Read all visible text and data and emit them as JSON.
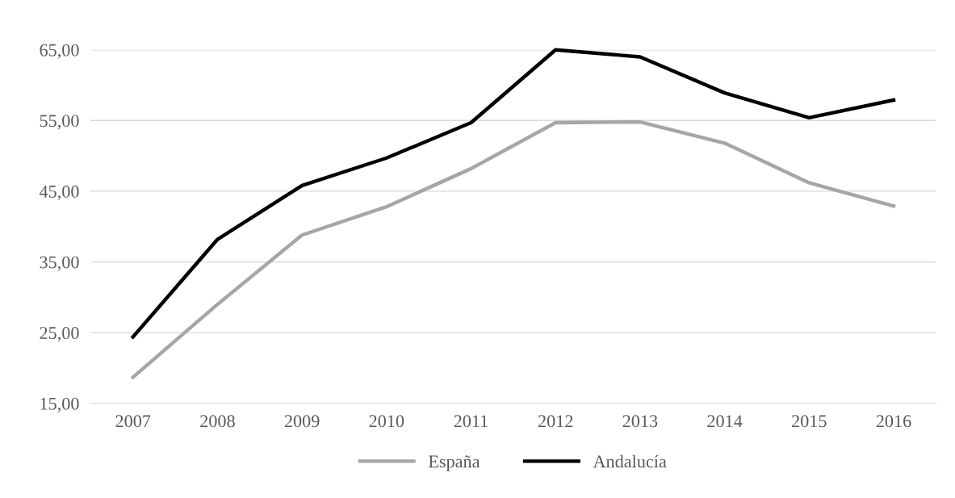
{
  "chart_data": {
    "type": "line",
    "categories": [
      "2007",
      "2008",
      "2009",
      "2010",
      "2011",
      "2012",
      "2013",
      "2014",
      "2015",
      "2016"
    ],
    "series": [
      {
        "name": "España",
        "color": "#a6a6a6",
        "values": [
          18.7,
          29.0,
          38.8,
          42.8,
          48.2,
          54.7,
          54.8,
          51.8,
          46.2,
          42.9
        ]
      },
      {
        "name": "Andalucía",
        "color": "#000000",
        "values": [
          24.4,
          38.2,
          45.8,
          49.7,
          54.7,
          65.0,
          64.0,
          58.9,
          55.4,
          57.9
        ]
      }
    ],
    "ylim": [
      15,
      65
    ],
    "yticks": [
      {
        "value": 15,
        "label": "15,00"
      },
      {
        "value": 25,
        "label": "25,00"
      },
      {
        "value": 35,
        "label": "35,00"
      },
      {
        "value": 45,
        "label": "45,00"
      },
      {
        "value": 55,
        "label": "55,00"
      },
      {
        "value": 65,
        "label": "65,00"
      }
    ],
    "grid": "y",
    "legend": "bottom",
    "marker": "none",
    "line_style": "solid"
  }
}
